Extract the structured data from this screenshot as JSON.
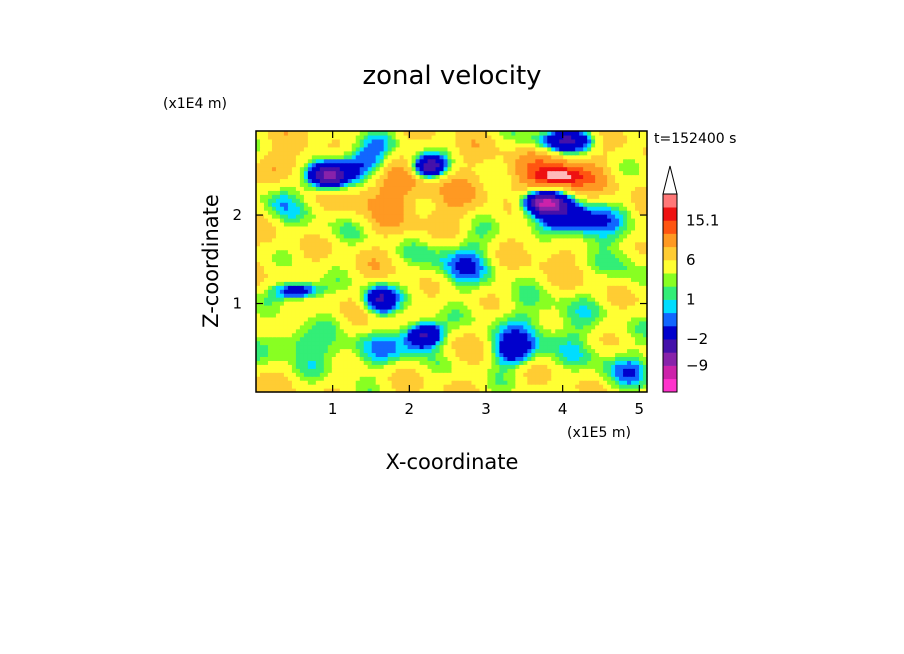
{
  "chart_data": {
    "type": "heatmap",
    "title": "zonal velocity",
    "xlabel": "X-coordinate",
    "ylabel": "Z-coordinate",
    "x_unit": "(x1E5 m)",
    "y_unit": "(x1E4 m)",
    "time_label": "t=152400 s",
    "xlim": [
      0,
      5.1
    ],
    "ylim": [
      0,
      2.95
    ],
    "x_ticks": [
      "1",
      "2",
      "3",
      "4",
      "5"
    ],
    "y_ticks": [
      "1",
      "2"
    ],
    "colorbar": {
      "labels": [
        "15.1",
        "6",
        "1",
        "-2",
        "-9"
      ],
      "label_values": [
        15.1,
        6,
        1,
        -2,
        -9
      ],
      "levels": [
        -15,
        -12,
        -9,
        -6,
        -2,
        -1,
        0,
        1,
        2,
        4,
        6,
        9,
        12,
        15.1
      ],
      "colors": [
        "#ff33cc",
        "#cc22aa",
        "#8822aa",
        "#4411aa",
        "#0000cc",
        "#1166ff",
        "#00ddff",
        "#33ee77",
        "#88ff22",
        "#ffff33",
        "#ffcc33",
        "#ff9922",
        "#ff5511",
        "#ee1111",
        "#ff7777",
        "#ffbbbb"
      ],
      "extend_max": true
    },
    "field": {
      "background": "#ffdd44",
      "blobs": [
        [
          0.45,
          2.6,
          0.5,
          0.2,
          0,
          6
        ],
        [
          1.55,
          2.4,
          0.6,
          0.45,
          0,
          9
        ],
        [
          2.45,
          2.15,
          0.55,
          0.45,
          0,
          6
        ],
        [
          3.9,
          2.45,
          0.7,
          0.3,
          0,
          9
        ],
        [
          3.95,
          2.45,
          0.35,
          0.12,
          0,
          12
        ],
        [
          2.5,
          0.55,
          0.5,
          0.3,
          0,
          6
        ],
        [
          1.55,
          1.3,
          0.4,
          0.3,
          0,
          4
        ],
        [
          0.2,
          1.5,
          0.3,
          0.4,
          0,
          4
        ],
        [
          4.35,
          1.0,
          0.6,
          0.35,
          0,
          4
        ],
        [
          3.9,
          1.7,
          0.6,
          0.25,
          0,
          6
        ],
        [
          3.5,
          1.15,
          0.35,
          0.35,
          0,
          4
        ],
        [
          1.4,
          2.6,
          0.5,
          0.3,
          0.2,
          -6
        ],
        [
          0.95,
          2.45,
          0.3,
          0.18,
          0,
          -9
        ],
        [
          2.25,
          2.55,
          0.25,
          0.15,
          0,
          -9
        ],
        [
          4.1,
          1.95,
          0.65,
          0.28,
          -0.2,
          -6
        ],
        [
          3.75,
          2.15,
          0.3,
          0.15,
          0,
          -9
        ],
        [
          2.2,
          0.65,
          0.3,
          0.18,
          0,
          -9
        ],
        [
          0.55,
          1.15,
          0.35,
          0.12,
          0,
          -6
        ],
        [
          1.6,
          1.05,
          0.25,
          0.2,
          0,
          -6
        ],
        [
          4.05,
          2.85,
          0.45,
          0.15,
          0,
          -6
        ],
        [
          2.65,
          1.5,
          0.6,
          0.4,
          0,
          -1
        ],
        [
          3.75,
          0.75,
          1.0,
          0.45,
          0,
          0
        ],
        [
          1.4,
          0.45,
          1.2,
          0.25,
          0,
          0
        ],
        [
          0.45,
          0.6,
          0.4,
          0.2,
          0,
          0
        ],
        [
          4.8,
          0.25,
          0.5,
          0.3,
          0,
          0
        ],
        [
          3.35,
          0.45,
          0.35,
          0.2,
          0,
          -2
        ],
        [
          1.0,
          1.9,
          0.5,
          0.35,
          0,
          2
        ],
        [
          0.3,
          2.2,
          0.3,
          0.3,
          0,
          0
        ],
        [
          4.85,
          1.45,
          0.3,
          0.4,
          0,
          1
        ]
      ],
      "wave_amplitude": 2.5
    }
  }
}
